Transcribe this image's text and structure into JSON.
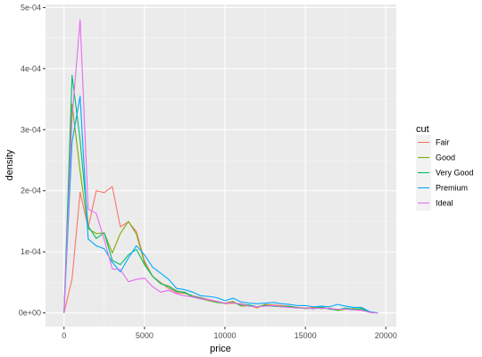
{
  "chart_data": {
    "type": "line",
    "xlabel": "price",
    "ylabel": "density",
    "xlim": [
      -1150,
      20650
    ],
    "ylim": [
      -2.25e-05,
      0.000505
    ],
    "x_ticks": [
      0,
      5000,
      10000,
      15000,
      20000
    ],
    "x_tick_labels": [
      "0",
      "5000",
      "10000",
      "15000",
      "20000"
    ],
    "y_ticks": [
      0,
      0.0001,
      0.0002,
      0.0003,
      0.0004,
      0.0005
    ],
    "y_tick_labels": [
      "0e+00",
      "1e-04",
      "2e-04",
      "3e-04",
      "4e-04",
      "5e-04"
    ],
    "grid": true,
    "legend": {
      "title": "cut",
      "position": "right"
    },
    "series": [
      {
        "name": "Fair",
        "color": "#F8766D",
        "x": [
          0,
          500,
          1000,
          1500,
          2000,
          2500,
          3000,
          3500,
          4000,
          4500,
          5000,
          5500,
          6000,
          6500,
          7000,
          7500,
          8000,
          8500,
          9000,
          9500,
          10000,
          10500,
          11000,
          11500,
          12000,
          12500,
          13000,
          13500,
          14000,
          14500,
          15000,
          15500,
          16000,
          16500,
          17000,
          17500,
          18000,
          18500,
          19000,
          19500
        ],
        "values": [
          0,
          5.6e-05,
          0.000198,
          0.000139,
          0.0002,
          0.000197,
          0.000207,
          0.000141,
          0.000149,
          0.000133,
          8.5e-05,
          6e-05,
          5e-05,
          4e-05,
          3.3e-05,
          3.2e-05,
          2.8e-05,
          2.5e-05,
          2.2e-05,
          1.9e-05,
          1.5e-05,
          1.6e-05,
          1.5e-05,
          1.2e-05,
          8e-06,
          1.4e-05,
          1.3e-05,
          1.2e-05,
          1.1e-05,
          9e-06,
          8e-06,
          9e-06,
          7e-06,
          8e-06,
          5e-06,
          6e-06,
          7e-06,
          5e-06,
          1e-06,
          0
        ]
      },
      {
        "name": "Good",
        "color": "#7CAE00",
        "x": [
          0,
          500,
          1000,
          1500,
          2000,
          2500,
          3000,
          3500,
          4000,
          4500,
          5000,
          5500,
          6000,
          6500,
          7000,
          7500,
          8000,
          8500,
          9000,
          9500,
          10000,
          10500,
          11000,
          11500,
          12000,
          12500,
          13000,
          13500,
          14000,
          14500,
          15000,
          15500,
          16000,
          16500,
          17000,
          17500,
          18000,
          18500,
          19000,
          19500
        ],
        "values": [
          0,
          0.000342,
          0.000232,
          0.000138,
          0.00013,
          0.000131,
          9.8e-05,
          0.00013,
          0.00015,
          0.000129,
          8.2e-05,
          6e-05,
          4.8e-05,
          4.4e-05,
          3.6e-05,
          3.3e-05,
          2.6e-05,
          2.3e-05,
          2e-05,
          1.7e-05,
          1.6e-05,
          1.9e-05,
          1.1e-05,
          1.2e-05,
          1e-05,
          1.3e-05,
          1.2e-05,
          1.1e-05,
          1e-05,
          9e-06,
          7e-06,
          8e-06,
          9e-06,
          7e-06,
          4e-06,
          6e-06,
          7e-06,
          6e-06,
          1e-06,
          0
        ]
      },
      {
        "name": "Very Good",
        "color": "#00BFC4",
        "colorKey": "#00BE67",
        "x": [
          0,
          500,
          1000,
          1500,
          2000,
          2500,
          3000,
          3500,
          4000,
          4500,
          5000,
          5500,
          6000,
          6500,
          7000,
          7500,
          8000,
          8500,
          9000,
          9500,
          10000,
          10500,
          11000,
          11500,
          12000,
          12500,
          13000,
          13500,
          14000,
          14500,
          15000,
          15500,
          16000,
          16500,
          17000,
          17500,
          18000,
          18500,
          19000,
          19500
        ],
        "values": [
          0,
          0.000389,
          0.000283,
          0.000142,
          0.000122,
          0.000131,
          8.6e-05,
          7.9e-05,
          9.5e-05,
          0.000104,
          7.9e-05,
          6e-05,
          4.8e-05,
          4.3e-05,
          3.5e-05,
          3.4e-05,
          2.7e-05,
          2.4e-05,
          2.1e-05,
          1.8e-05,
          1.6e-05,
          1.7e-05,
          1.3e-05,
          1.3e-05,
          1e-05,
          1.2e-05,
          1.1e-05,
          1e-05,
          1.1e-05,
          8e-06,
          8e-06,
          7e-06,
          1e-05,
          6e-06,
          5e-06,
          8e-06,
          6e-06,
          7e-06,
          1e-06,
          0
        ]
      },
      {
        "name": "Premium",
        "color": "#00A9FF",
        "x": [
          0,
          500,
          1000,
          1500,
          2000,
          2500,
          3000,
          3500,
          4000,
          4500,
          5000,
          5500,
          6000,
          6500,
          7000,
          7500,
          8000,
          8500,
          9000,
          9500,
          10000,
          10500,
          11000,
          11500,
          12000,
          12500,
          13000,
          13500,
          14000,
          14500,
          15000,
          15500,
          16000,
          16500,
          17000,
          17500,
          18000,
          18500,
          19000,
          19500
        ],
        "values": [
          0,
          0.00028,
          0.000355,
          0.000121,
          0.00011,
          0.000105,
          8.3e-05,
          6.7e-05,
          9e-05,
          0.00011,
          9.5e-05,
          7.5e-05,
          6.5e-05,
          5.5e-05,
          4e-05,
          3.8e-05,
          3.4e-05,
          2.8e-05,
          2.7e-05,
          2.5e-05,
          2e-05,
          2.4e-05,
          1.8e-05,
          1.6e-05,
          1.5e-05,
          1.6e-05,
          1.7e-05,
          1.5e-05,
          1.4e-05,
          1.2e-05,
          1.2e-05,
          1e-05,
          1.1e-05,
          1e-05,
          1.4e-05,
          1.1e-05,
          9e-06,
          9e-06,
          2e-06,
          0
        ]
      },
      {
        "name": "Ideal",
        "color": "#C77CFF",
        "colorKey": "#E76BF3",
        "x": [
          0,
          500,
          1000,
          1500,
          2000,
          2500,
          3000,
          3500,
          4000,
          4500,
          5000,
          5500,
          6000,
          6500,
          7000,
          7500,
          8000,
          8500,
          9000,
          9500,
          10000,
          10500,
          11000,
          11500,
          12000,
          12500,
          13000,
          13500,
          14000,
          14500,
          15000,
          15500,
          16000,
          16500,
          17000,
          17500,
          18000,
          18500,
          19000,
          19500
        ],
        "values": [
          0,
          0.00032,
          0.00048,
          0.00017,
          0.000163,
          0.00012,
          7.2e-05,
          7.1e-05,
          5.1e-05,
          5.5e-05,
          5.7e-05,
          4.3e-05,
          3.4e-05,
          3.7e-05,
          3.1e-05,
          2.8e-05,
          2.6e-05,
          2.3e-05,
          2.1e-05,
          1.9e-05,
          1.6e-05,
          1.7e-05,
          1.4e-05,
          1.1e-05,
          1e-05,
          1.1e-05,
          1.2e-05,
          1e-05,
          9e-06,
          8e-06,
          8e-06,
          7e-06,
          8e-06,
          7e-06,
          6e-06,
          6e-06,
          5e-06,
          4e-06,
          1e-06,
          0
        ]
      }
    ]
  }
}
